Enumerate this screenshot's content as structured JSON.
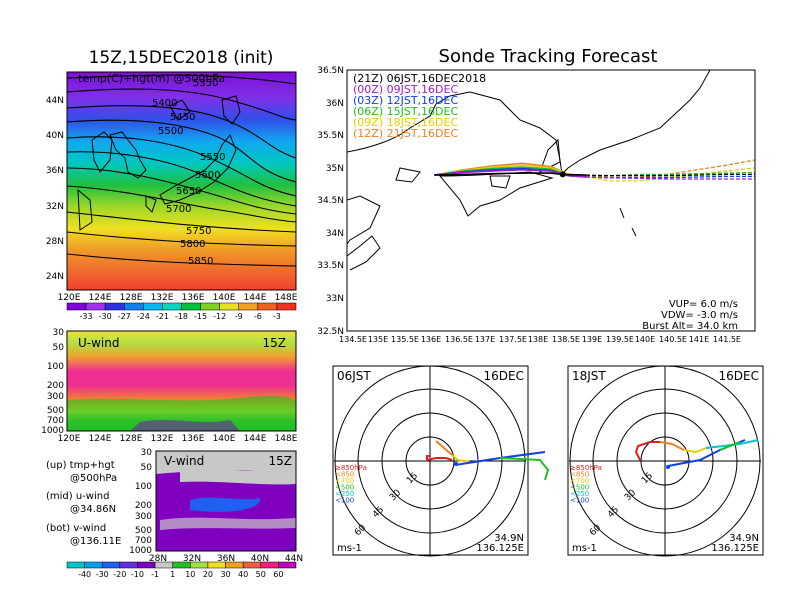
{
  "left_map": {
    "title": "15Z,15DEC2018 (init)",
    "inner_label": "temp(C)+hgt(m) @500hPa",
    "contour_labels": [
      "5350",
      "5400",
      "5450",
      "5500",
      "5550",
      "5600",
      "5650",
      "5700",
      "5750",
      "5800",
      "5850"
    ],
    "lat_ticks": [
      "44N",
      "40N",
      "36N",
      "32N",
      "28N",
      "24N"
    ],
    "lon_ticks": [
      "120E",
      "124E",
      "128E",
      "132E",
      "136E",
      "140E",
      "144E",
      "148E"
    ],
    "colorbar_labels": [
      "-33",
      "-30",
      "-27",
      "-24",
      "-21",
      "-18",
      "-15",
      "-12",
      "-9",
      "-6",
      "-3"
    ],
    "colorbar_colors": [
      "#7f00d8",
      "#a030f0",
      "#3030e0",
      "#1080f0",
      "#00b8f0",
      "#00d8c0",
      "#00c040",
      "#80d020",
      "#e8e020",
      "#f0a020",
      "#f06020",
      "#f03020"
    ]
  },
  "uwind_panel": {
    "label": "U-wind",
    "time": "15Z",
    "y_ticks": [
      "30",
      "50",
      "100",
      "200",
      "300",
      "500",
      "700",
      "1000"
    ],
    "x_ticks": [
      "120E",
      "124E",
      "128E",
      "132E",
      "136E",
      "140E",
      "144E",
      "148E"
    ]
  },
  "vwind_panel": {
    "label": "V-wind",
    "time": "15Z",
    "y_ticks": [
      "30",
      "50",
      "100",
      "200",
      "300",
      "500",
      "700",
      "1000"
    ],
    "x_ticks": [
      "28N",
      "32N",
      "36N",
      "40N",
      "44N"
    ]
  },
  "legend_notes": {
    "up_line1": "(up) tmp+hgt",
    "up_line2": "@500hPa",
    "mid_line1": "(mid) u-wind",
    "mid_line2": "@34.86N",
    "bot_line1": "(bot) v-wind",
    "bot_line2": "@136.11E"
  },
  "wind_colorbar": {
    "labels": [
      "-40",
      "-30",
      "-20",
      "-10",
      "-1",
      "1",
      "10",
      "20",
      "30",
      "40",
      "50",
      "60"
    ],
    "colors": [
      "#00c8c8",
      "#00a0f0",
      "#2060f0",
      "#6030e0",
      "#8000c0",
      "#c8c8c8",
      "#20c020",
      "#a0e040",
      "#f0e020",
      "#f0a020",
      "#f06040",
      "#f02080",
      "#c000c0"
    ]
  },
  "main": {
    "title": "Sonde Tracking Forecast",
    "lat_ticks": [
      "36.5N",
      "36N",
      "35.5N",
      "35N",
      "34.5N",
      "34N",
      "33.5N",
      "33N",
      "32.5N"
    ],
    "lon_ticks": [
      "134.5E",
      "135E",
      "135.5E",
      "136E",
      "136.5E",
      "137E",
      "137.5E",
      "138E",
      "138.5E",
      "139E",
      "139.5E",
      "140E",
      "140.5E",
      "141E",
      "141.5E"
    ],
    "launch_entries": [
      {
        "text": "(21Z)  06JST,16DEC2018",
        "color": "#000000"
      },
      {
        "text": "(00Z)  09JST,16DEC",
        "color": "#a020d0"
      },
      {
        "text": "(03Z)  12JST,16DEC",
        "color": "#1040e0"
      },
      {
        "text": "(06Z)  15JST,16DEC",
        "color": "#20c020"
      },
      {
        "text": "(09Z)  18JST,16DEC",
        "color": "#e8d000"
      },
      {
        "text": "(12Z)  21JST,16DEC",
        "color": "#f08020"
      }
    ],
    "vup": "VUP=  6.0  m/s",
    "vdw": "VDW= -3.0  m/s",
    "burst": "Burst Alt=  34.0  km"
  },
  "polar_left": {
    "time": "06JST",
    "date": "16DEC",
    "ring_labels": [
      "15",
      "30",
      "45",
      "60"
    ],
    "unit": "ms-1",
    "lat": "34.9N",
    "lon": "136.125E",
    "level_legend": [
      {
        "text": "≥850hPa",
        "color": "#e02020"
      },
      {
        "text": "<850",
        "color": "#f08020"
      },
      {
        "text": "<700",
        "color": "#e8d000"
      },
      {
        "text": "<500",
        "color": "#20c020"
      },
      {
        "text": "<250",
        "color": "#00c8c8"
      },
      {
        "text": "<100",
        "color": "#1040e0"
      }
    ]
  },
  "polar_right": {
    "time": "18JST",
    "date": "16DEC",
    "ring_labels": [
      "15",
      "30",
      "45",
      "60"
    ],
    "unit": "ms-1",
    "lat": "34.9N",
    "lon": "136.125E",
    "level_legend": [
      {
        "text": "≥850hPa",
        "color": "#e02020"
      },
      {
        "text": "<850",
        "color": "#f08020"
      },
      {
        "text": "<700",
        "color": "#e8d000"
      },
      {
        "text": "<500",
        "color": "#20c020"
      },
      {
        "text": "<250",
        "color": "#00c8c8"
      },
      {
        "text": "<100",
        "color": "#1040e0"
      }
    ]
  },
  "chart_data": [
    {
      "type": "heatmap",
      "title": "15Z,15DEC2018 (init)",
      "subtitle": "temp(C)+hgt(m) @500hPa",
      "xlim": [
        120,
        149
      ],
      "ylim": [
        22,
        47
      ],
      "contours_m": [
        5350,
        5400,
        5450,
        5500,
        5550,
        5600,
        5650,
        5700,
        5750,
        5800,
        5850
      ]
    },
    {
      "type": "line",
      "title": "Sonde Tracking Forecast",
      "xlim": [
        134.5,
        141.5
      ],
      "ylim": [
        32.5,
        36.5
      ],
      "series": [
        {
          "name": "(21Z)  06JST,16DEC2018",
          "x": [
            136.0,
            136.5,
            137.0,
            137.5,
            138.0,
            138.2,
            138.6,
            139.0,
            139.5,
            140.0,
            140.5,
            141.0,
            141.5
          ],
          "y": [
            34.89,
            34.9,
            34.91,
            34.92,
            34.92,
            34.9,
            34.89,
            34.88,
            34.88,
            34.88,
            34.89,
            34.9,
            34.9
          ]
        },
        {
          "name": "(00Z)  09JST,16DEC",
          "x": [
            136.0,
            136.5,
            137.0,
            137.5,
            138.0,
            138.3,
            138.6,
            139.0,
            139.5,
            140.0,
            140.5,
            141.0,
            141.5
          ],
          "y": [
            34.89,
            34.93,
            34.95,
            34.97,
            34.95,
            34.88,
            34.86,
            34.85,
            34.84,
            34.83,
            34.83,
            34.83,
            34.83
          ]
        },
        {
          "name": "(03Z)  12JST,16DEC",
          "x": [
            136.0,
            136.5,
            137.0,
            137.5,
            138.0,
            138.3,
            138.6,
            139.0,
            139.5,
            140.0,
            140.5,
            141.0,
            141.5
          ],
          "y": [
            34.89,
            34.94,
            34.97,
            34.99,
            34.96,
            34.88,
            34.86,
            34.85,
            34.85,
            34.85,
            34.86,
            34.87,
            34.87
          ]
        },
        {
          "name": "(06Z)  15JST,16DEC",
          "x": [
            136.0,
            136.5,
            137.0,
            137.5,
            138.0,
            138.3,
            138.6,
            139.0,
            139.5,
            140.0,
            140.5,
            141.0,
            141.5
          ],
          "y": [
            34.89,
            34.95,
            34.99,
            35.01,
            34.98,
            34.88,
            34.86,
            34.88,
            34.9,
            34.9,
            34.91,
            34.92,
            34.93
          ]
        },
        {
          "name": "(09Z)  18JST,16DEC",
          "x": [
            136.0,
            136.5,
            137.0,
            137.5,
            138.0,
            138.3,
            138.6,
            139.0,
            139.5,
            140.0,
            140.5,
            141.0,
            141.5
          ],
          "y": [
            34.89,
            34.96,
            35.01,
            35.04,
            35.0,
            34.9,
            34.87,
            34.8,
            34.8,
            34.85,
            34.9,
            34.95,
            35.0
          ]
        },
        {
          "name": "(12Z)  21JST,16DEC",
          "x": [
            136.0,
            136.5,
            137.0,
            137.5,
            138.0,
            138.3,
            138.6,
            139.0,
            139.5,
            140.0,
            140.5,
            141.0,
            141.5
          ],
          "y": [
            34.89,
            34.97,
            35.03,
            35.07,
            35.02,
            34.9,
            34.88,
            34.85,
            34.85,
            34.9,
            34.97,
            35.04,
            35.12
          ]
        }
      ]
    }
  ]
}
